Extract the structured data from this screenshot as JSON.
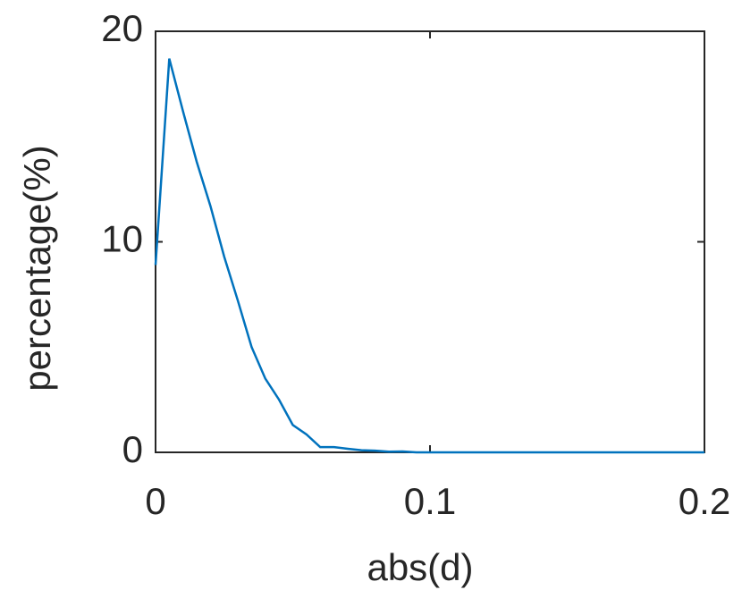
{
  "chart_data": {
    "type": "line",
    "xlabel": "abs(d)",
    "ylabel": "percentage(%)",
    "x": [
      0,
      0.005,
      0.01,
      0.015,
      0.02,
      0.025,
      0.03,
      0.035,
      0.04,
      0.045,
      0.05,
      0.055,
      0.06,
      0.065,
      0.07,
      0.075,
      0.08,
      0.085,
      0.09,
      0.095,
      0.1,
      0.105,
      0.11,
      0.115,
      0.12,
      0.125,
      0.13,
      0.135,
      0.14,
      0.145,
      0.15,
      0.155,
      0.16,
      0.165,
      0.17,
      0.175,
      0.18,
      0.185,
      0.19,
      0.195,
      0.2
    ],
    "series": [
      {
        "color": "#0072bd",
        "values": [
          8.9,
          18.7,
          16.2,
          13.8,
          11.7,
          9.3,
          7.2,
          5.0,
          3.5,
          2.5,
          1.3,
          0.85,
          0.25,
          0.25,
          0.17,
          0.1,
          0.08,
          0.03,
          0.04,
          0,
          0,
          0,
          0,
          0,
          0,
          0,
          0,
          0,
          0,
          0,
          0,
          0,
          0,
          0,
          0,
          0,
          0,
          0,
          0,
          0,
          0
        ]
      }
    ],
    "xlim": [
      0,
      0.2
    ],
    "ylim": [
      0,
      20
    ],
    "xticks": [
      0,
      0.1,
      0.2
    ],
    "yticks": [
      0,
      10,
      20
    ]
  }
}
